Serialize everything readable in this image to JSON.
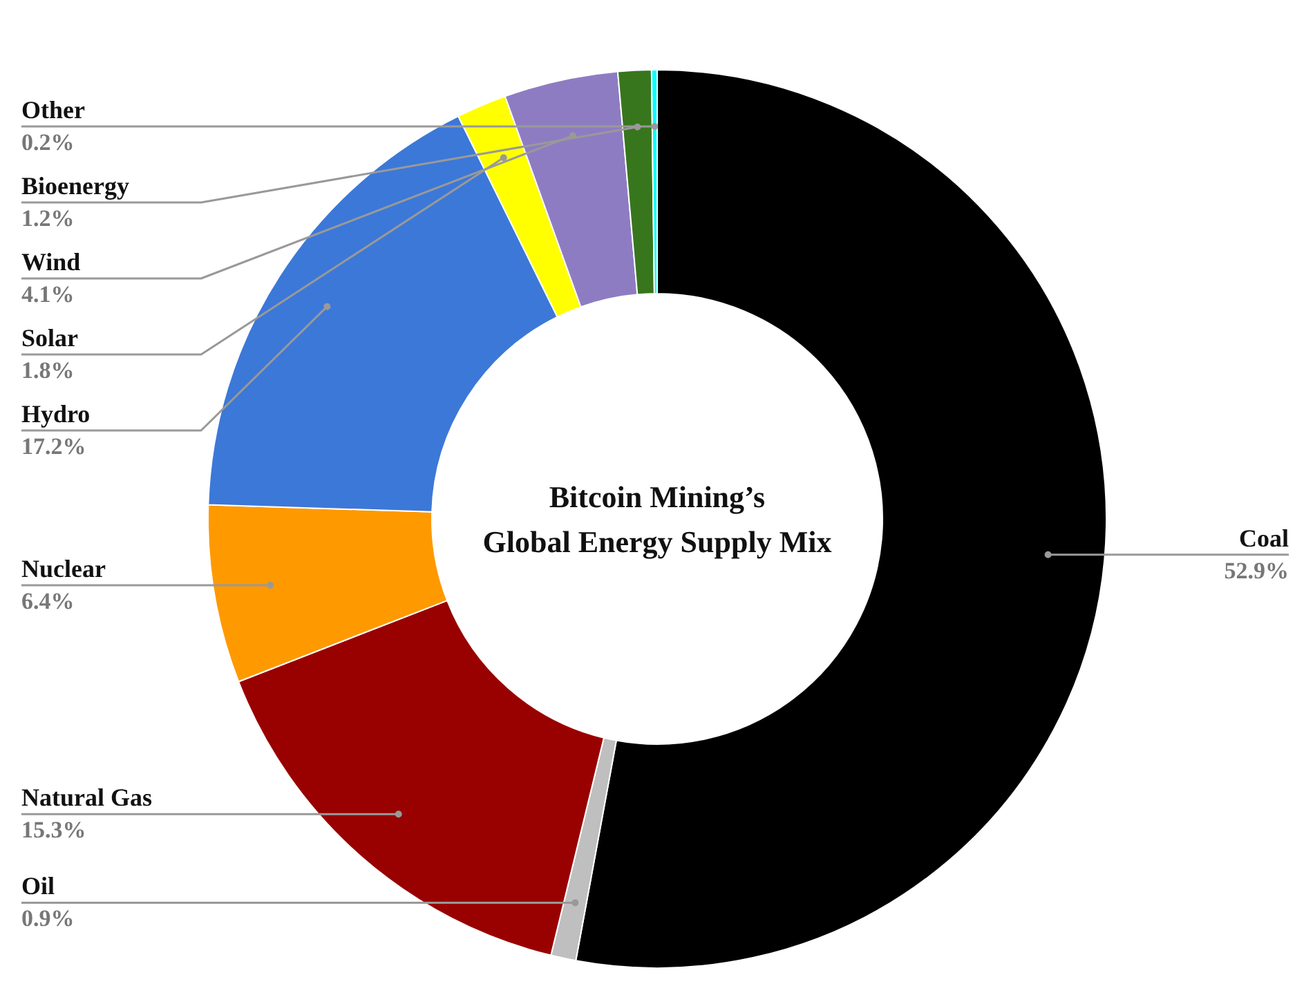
{
  "chart_data": {
    "type": "donut",
    "title": "Bitcoin Mining’s\nGlobal Energy Supply Mix",
    "categories": [
      "Coal",
      "Oil",
      "Natural Gas",
      "Nuclear",
      "Hydro",
      "Solar",
      "Wind",
      "Bioenergy",
      "Other"
    ],
    "values": [
      52.9,
      0.9,
      15.3,
      6.4,
      17.2,
      1.8,
      4.1,
      1.2,
      0.2
    ],
    "colors": [
      "#000000",
      "#bfbfbf",
      "#990000",
      "#ff9900",
      "#3c78d8",
      "#ffff00",
      "#8e7cc3",
      "#38761d",
      "#00ffff"
    ],
    "value_labels": [
      "52.9%",
      "0.9%",
      "15.3%",
      "6.4%",
      "17.2%",
      "1.8%",
      "4.1%",
      "1.2%",
      "0.2%"
    ]
  }
}
